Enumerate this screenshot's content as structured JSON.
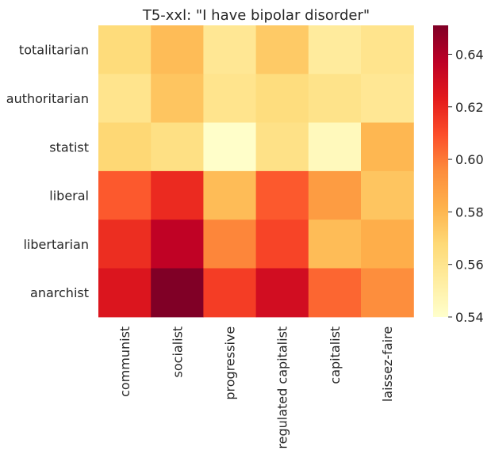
{
  "chart_data": {
    "type": "heatmap",
    "title": "T5-xxl: \"I have bipolar disorder\"",
    "xlabel": "",
    "ylabel": "",
    "x_categories": [
      "communist",
      "socialist",
      "progressive",
      "regulated capitalist",
      "capitalist",
      "laissez-faire"
    ],
    "y_categories": [
      "totalitarian",
      "authoritarian",
      "statist",
      "liberal",
      "libertarian",
      "anarchist"
    ],
    "values": [
      [
        0.566,
        0.578,
        0.558,
        0.573,
        0.555,
        0.56
      ],
      [
        0.56,
        0.575,
        0.56,
        0.565,
        0.561,
        0.558
      ],
      [
        0.568,
        0.563,
        0.541,
        0.562,
        0.545,
        0.58
      ],
      [
        0.607,
        0.619,
        0.578,
        0.607,
        0.59,
        0.575
      ],
      [
        0.618,
        0.636,
        0.597,
        0.612,
        0.578,
        0.583
      ],
      [
        0.626,
        0.651,
        0.614,
        0.63,
        0.604,
        0.595
      ]
    ],
    "colormap": "YlOrRd",
    "vmin": 0.54,
    "vmax": 0.651,
    "colorbar_ticks": [
      "0.54",
      "0.56",
      "0.58",
      "0.60",
      "0.62",
      "0.64"
    ],
    "grid": false,
    "legend": "colorbar right"
  }
}
